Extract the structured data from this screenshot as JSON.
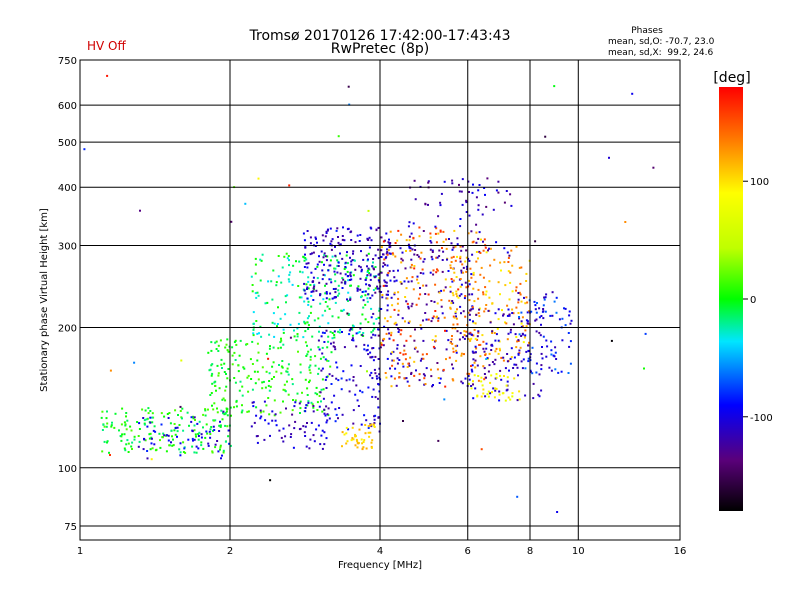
{
  "chart_data": {
    "type": "scatter",
    "title": "Tromsø 20170126 17:42:00-17:43:43",
    "subtitle": "RwPretec (8p)",
    "status_text": "HV Off",
    "stats": {
      "heading": "Phases",
      "line1": "mean, sd,O: -70.7, 23.0",
      "line2": "mean, sd,X:  99.2, 24.6"
    },
    "xlabel": "Frequency [MHz]",
    "ylabel": "Stationary phase Virtual Height [km]",
    "x_scale": "log",
    "y_scale": "log",
    "xlim": [
      1,
      16
    ],
    "ylim": [
      70,
      750
    ],
    "x_ticks": [
      1,
      2,
      4,
      6,
      8,
      10,
      16
    ],
    "y_ticks": [
      75,
      100,
      200,
      300,
      400,
      500,
      600,
      750
    ],
    "grid": true,
    "colorbar": {
      "label": "[deg]",
      "min": -180,
      "max": 180,
      "ticks": [
        100,
        0,
        -100
      ]
    },
    "accent_colors": {
      "hv_off": "#d00000"
    },
    "clusters": [
      {
        "x": [
          1.1,
          2.0
        ],
        "y": [
          108,
          135
        ],
        "phase": [
          -20,
          20
        ],
        "n": 180
      },
      {
        "x": [
          1.3,
          2.0
        ],
        "y": [
          105,
          130
        ],
        "phase": [
          -120,
          -80
        ],
        "n": 60
      },
      {
        "x": [
          1.8,
          3.2
        ],
        "y": [
          130,
          190
        ],
        "phase": [
          -20,
          20
        ],
        "n": 220
      },
      {
        "x": [
          2.2,
          3.2
        ],
        "y": [
          110,
          140
        ],
        "phase": [
          -130,
          -90
        ],
        "n": 70
      },
      {
        "x": [
          2.2,
          4.0
        ],
        "y": [
          190,
          290
        ],
        "phase": [
          -40,
          10
        ],
        "n": 240
      },
      {
        "x": [
          2.8,
          4.2
        ],
        "y": [
          230,
          330
        ],
        "phase": [
          -130,
          -90
        ],
        "n": 220
      },
      {
        "x": [
          3.0,
          4.0
        ],
        "y": [
          120,
          200
        ],
        "phase": [
          -130,
          -80
        ],
        "n": 120
      },
      {
        "x": [
          3.3,
          3.9
        ],
        "y": [
          110,
          125
        ],
        "phase": [
          90,
          120
        ],
        "n": 45
      },
      {
        "x": [
          3.8,
          6.2
        ],
        "y": [
          150,
          300
        ],
        "phase": [
          -140,
          -90
        ],
        "n": 220
      },
      {
        "x": [
          4.0,
          6.5
        ],
        "y": [
          150,
          330
        ],
        "phase": [
          100,
          170
        ],
        "n": 210
      },
      {
        "x": [
          4.5,
          7.5
        ],
        "y": [
          280,
          420
        ],
        "phase": [
          -140,
          -90
        ],
        "n": 90
      },
      {
        "x": [
          5.5,
          8.0
        ],
        "y": [
          170,
          300
        ],
        "phase": [
          90,
          150
        ],
        "n": 160
      },
      {
        "x": [
          6.0,
          8.5
        ],
        "y": [
          140,
          220
        ],
        "phase": [
          -130,
          -90
        ],
        "n": 120
      },
      {
        "x": [
          7.5,
          9.8
        ],
        "y": [
          160,
          240
        ],
        "phase": [
          -120,
          -60
        ],
        "n": 80
      },
      {
        "x": [
          6.0,
          7.6
        ],
        "y": [
          140,
          160
        ],
        "phase": [
          70,
          100
        ],
        "n": 40
      },
      {
        "x": [
          1.0,
          15.0
        ],
        "y": [
          80,
          700
        ],
        "phase": [
          -180,
          180
        ],
        "n": 45
      }
    ]
  }
}
